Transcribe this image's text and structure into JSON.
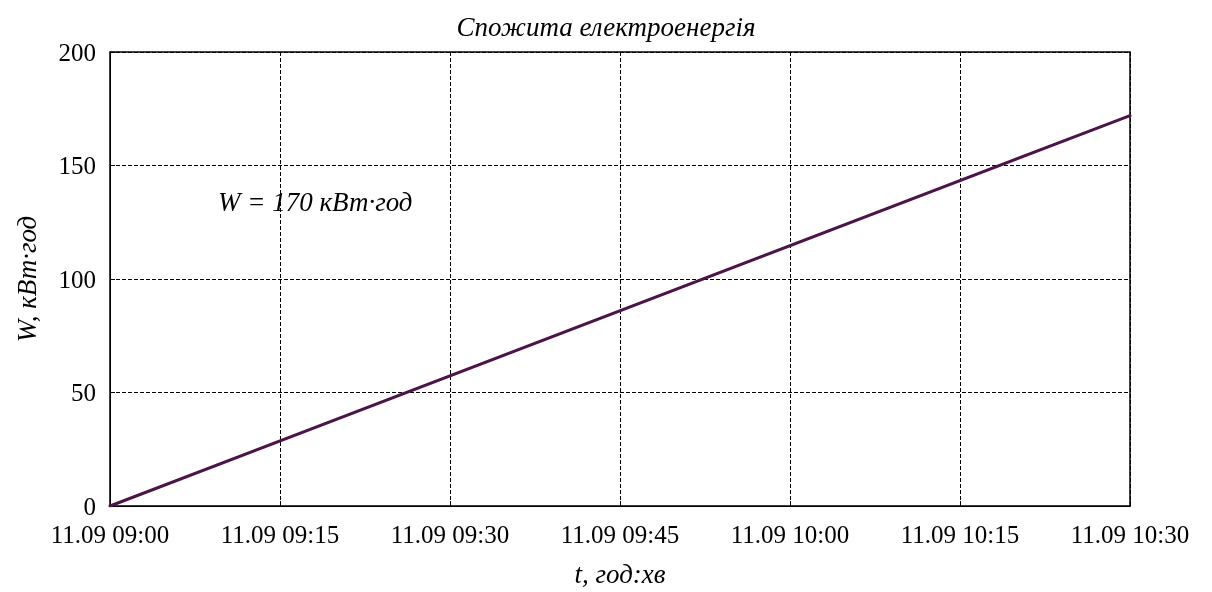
{
  "chart_data": {
    "type": "line",
    "title": "Спожита електроенергія",
    "xlabel": "t, год:хв",
    "ylabel": "W, кВт·год",
    "x": [
      "--09-11T09:00",
      "--09-11T10:30"
    ],
    "series": [
      {
        "color": "#4b1548",
        "values": [
          0,
          172
        ]
      }
    ],
    "xlim": [
      "--09-11T09:00",
      "--09-11T10:30"
    ],
    "xticks": [
      {
        "value": "--09-11T09:00",
        "label": "11.09 09:00"
      },
      {
        "value": "--09-11T09:15",
        "label": "11.09 09:15"
      },
      {
        "value": "--09-11T09:30",
        "label": "11.09 09:30"
      },
      {
        "value": "--09-11T09:45",
        "label": "11.09 09:45"
      },
      {
        "value": "--09-11T10:00",
        "label": "11.09 10:00"
      },
      {
        "value": "--09-11T10:15",
        "label": "11.09 10:15"
      },
      {
        "value": "--09-11T10:30",
        "label": "11.09 10:30"
      }
    ],
    "ylim": [
      0,
      200
    ],
    "yticks": [
      0,
      50,
      100,
      150,
      200
    ],
    "annotations": [
      "W = 170 кВт·год"
    ],
    "grid": true,
    "marker": "none",
    "line_style": "solid"
  }
}
